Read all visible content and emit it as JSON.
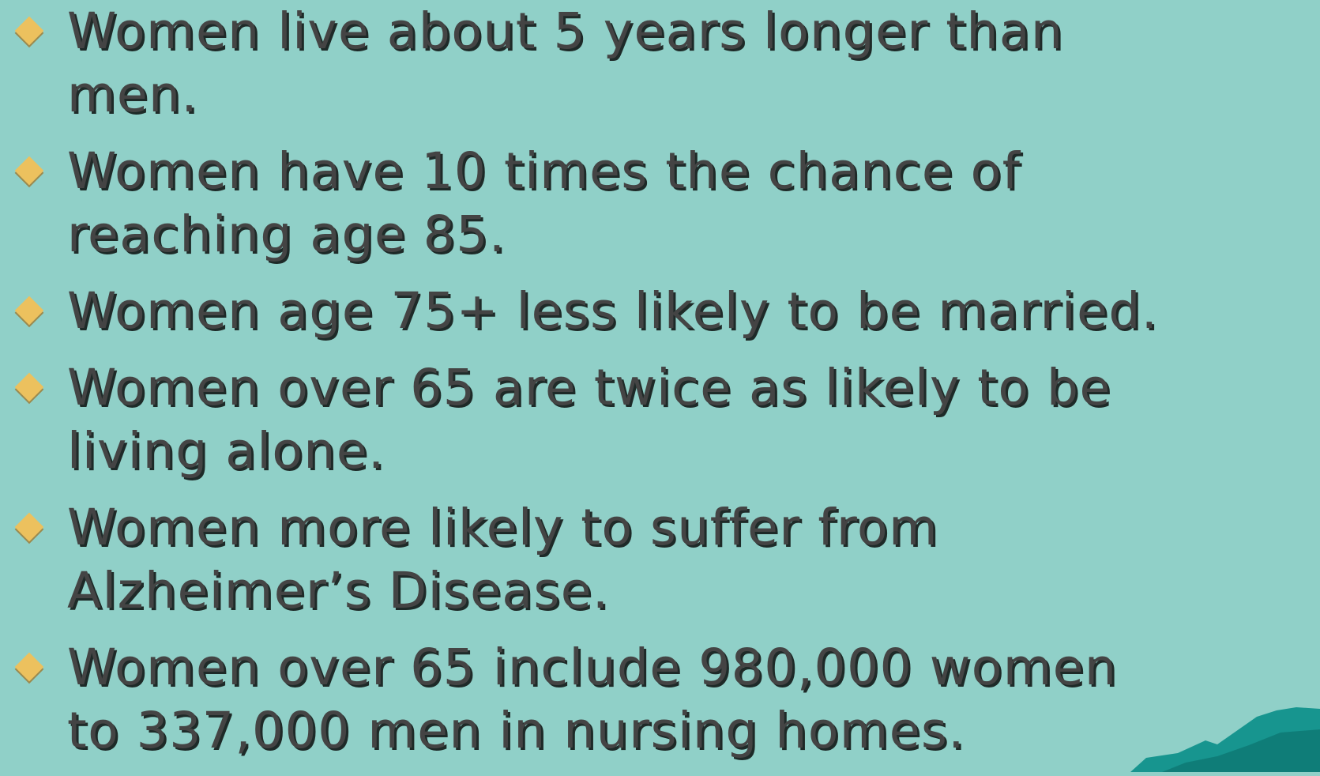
{
  "bullets": [
    [
      "Women live about 5 years longer than",
      "men."
    ],
    [
      "Women have 10 times the chance of",
      "reaching age 85."
    ],
    [
      "Women age 75+ less likely to be married."
    ],
    [
      "Women over 65 are twice as likely to be",
      "living alone."
    ],
    [
      "Women more likely to suffer from",
      "Alzheimer’s Disease."
    ],
    [
      "Women over 65 include 980,000 women",
      "to 337,000 men in nursing homes."
    ]
  ]
}
